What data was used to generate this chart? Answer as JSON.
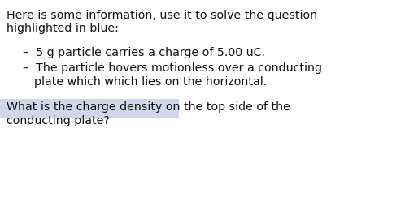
{
  "bg_color": "#ffffff",
  "fig_width": 5.14,
  "fig_height": 2.59,
  "dpi": 100,
  "header_line1": "Here is some information, use it to solve the question",
  "header_line2": "highlighted in blue:",
  "bullet1": "–  5 g particle carries a charge of 5.00 uC.",
  "bullet2_line1": "–  The particle hovers motionless over a conducting",
  "bullet2_line2": "     plate which which lies on the horizontal.",
  "question_line1": "What is the charge density on the top side of the",
  "question_line2": "conducting plate?",
  "highlight_color": "#cdd9ea",
  "text_color": "#111111",
  "font_family": "Georgia",
  "fontsize": 10.2,
  "fontweight": "normal"
}
